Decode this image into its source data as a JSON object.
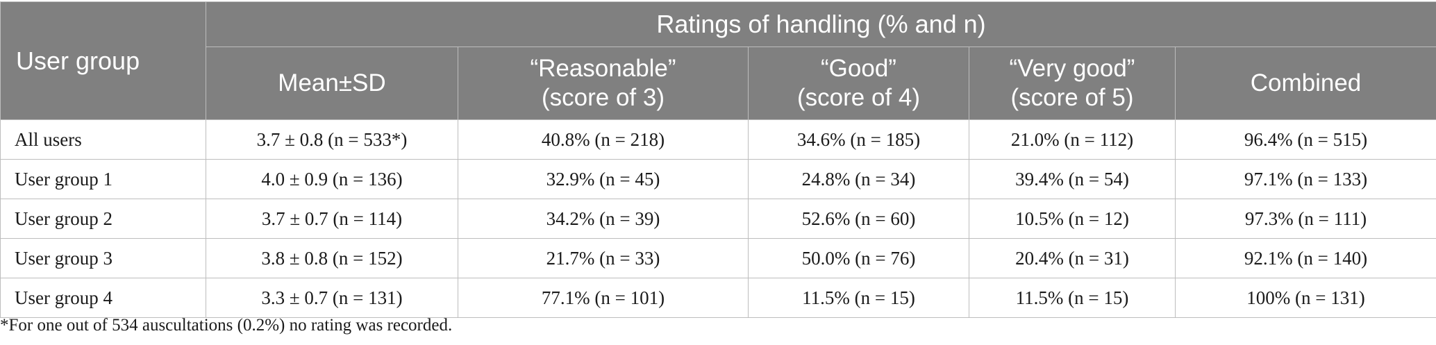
{
  "table": {
    "row_header": "User group",
    "group_header": "Ratings of handling (% and n)",
    "columns": [
      {
        "line1": "Mean±SD",
        "line2": ""
      },
      {
        "line1": "“Reasonable”",
        "line2": "(score of 3)"
      },
      {
        "line1": "“Good”",
        "line2": "(score of 4)"
      },
      {
        "line1": "“Very good”",
        "line2": "(score of 5)"
      },
      {
        "line1": "Combined",
        "line2": ""
      }
    ],
    "rows": [
      {
        "label": "All users",
        "cells": [
          "3.7 ± 0.8 (n = 533*)",
          "40.8% (n = 218)",
          "34.6% (n = 185)",
          "21.0% (n = 112)",
          "96.4% (n = 515)"
        ]
      },
      {
        "label": "User group 1",
        "cells": [
          "4.0 ± 0.9 (n = 136)",
          "32.9% (n = 45)",
          "24.8% (n = 34)",
          "39.4% (n = 54)",
          "97.1% (n = 133)"
        ]
      },
      {
        "label": "User group 2",
        "cells": [
          "3.7 ± 0.7 (n = 114)",
          "34.2% (n = 39)",
          "52.6% (n = 60)",
          "10.5% (n = 12)",
          "97.3% (n = 111)"
        ]
      },
      {
        "label": "User group 3",
        "cells": [
          "3.8 ± 0.8 (n = 152)",
          "21.7% (n = 33)",
          "50.0% (n = 76)",
          "20.4% (n = 31)",
          "92.1% (n = 140)"
        ]
      },
      {
        "label": "User group 4",
        "cells": [
          "3.3 ± 0.7 (n = 131)",
          "77.1% (n = 101)",
          "11.5% (n = 15)",
          "11.5% (n = 15)",
          "100% (n = 131)"
        ]
      }
    ],
    "footnote": "*For one out of 534 auscultations (0.2%) no rating was recorded."
  }
}
